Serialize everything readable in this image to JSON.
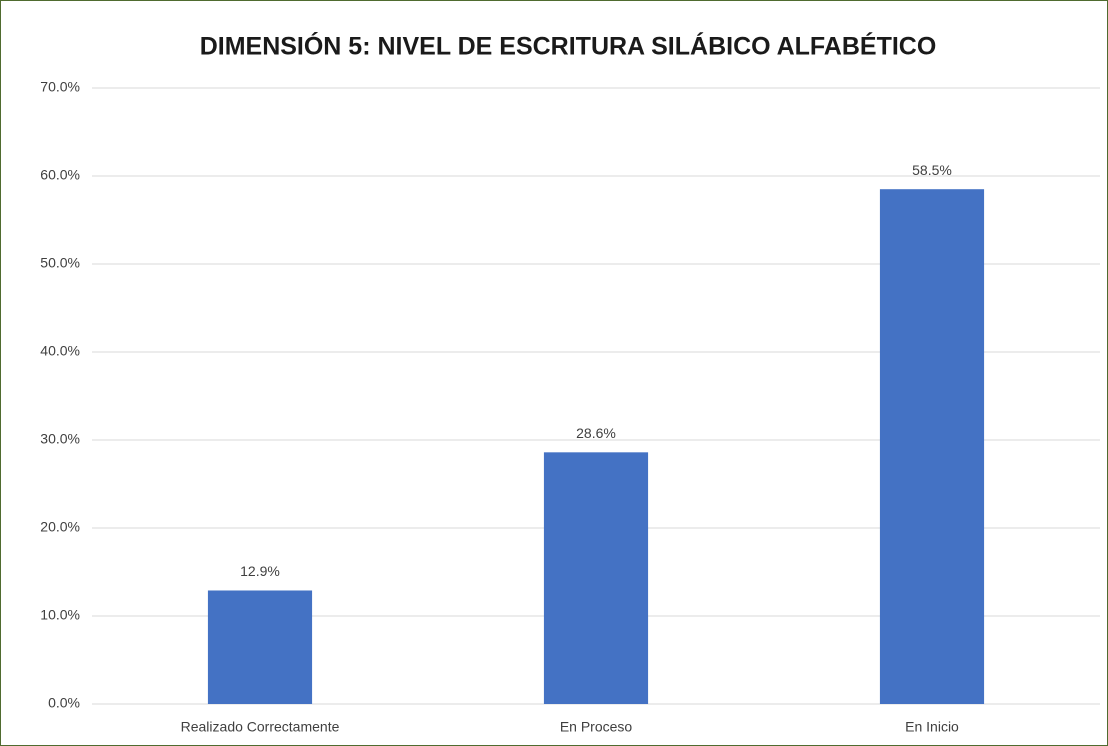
{
  "chart_data": {
    "type": "bar",
    "title": "DIMENSIÓN 5: NIVEL DE ESCRITURA SILÁBICO ALFABÉTICO",
    "categories": [
      "Realizado Correctamente",
      "En Proceso",
      "En Inicio"
    ],
    "values": [
      12.9,
      28.6,
      58.5
    ],
    "value_labels": [
      "12.9%",
      "28.6%",
      "58.5%"
    ],
    "color": "#4472c4",
    "ylim": [
      0,
      70
    ],
    "yticks": [
      {
        "value": 0,
        "label": "0.0%"
      },
      {
        "value": 10,
        "label": "10.0%"
      },
      {
        "value": 20,
        "label": "20.0%"
      },
      {
        "value": 30,
        "label": "30.0%"
      },
      {
        "value": 40,
        "label": "40.0%"
      },
      {
        "value": 50,
        "label": "50.0%"
      },
      {
        "value": 60,
        "label": "60.0%"
      },
      {
        "value": 70,
        "label": "70.0%"
      }
    ],
    "grid": true
  }
}
